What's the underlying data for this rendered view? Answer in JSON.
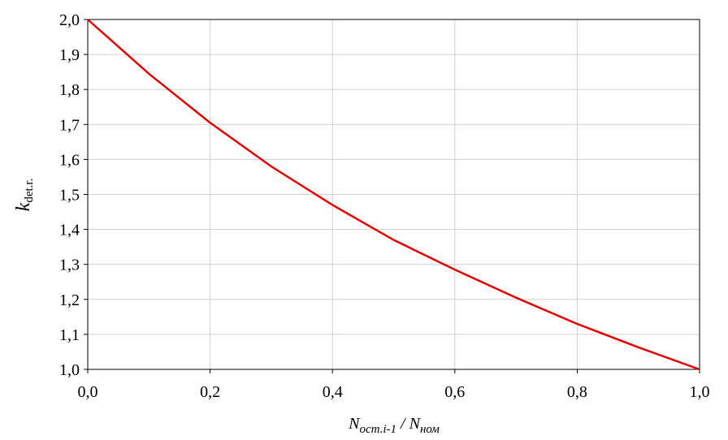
{
  "chart_data": {
    "type": "line",
    "xlabel": {
      "main1": "N",
      "sub1": "ост.i-1",
      "sep": " / ",
      "main2": "N",
      "sub2": "ном"
    },
    "ylabel": {
      "main": "k",
      "sub": "det.r."
    },
    "x": [
      0,
      0.1,
      0.2,
      0.3,
      0.4,
      0.5,
      0.6,
      0.7,
      0.8,
      0.9,
      1.0
    ],
    "series": [
      {
        "color": "#e00000",
        "values": [
          2.0,
          1.845,
          1.705,
          1.58,
          1.47,
          1.37,
          1.285,
          1.205,
          1.13,
          1.063,
          1.0
        ]
      }
    ],
    "xlim": [
      0,
      1
    ],
    "ylim": [
      1,
      2
    ],
    "xticks": [
      {
        "value": 0,
        "label": "0,0"
      },
      {
        "value": 0.2,
        "label": "0,2"
      },
      {
        "value": 0.4,
        "label": "0,4"
      },
      {
        "value": 0.6,
        "label": "0,6"
      },
      {
        "value": 0.8,
        "label": "0,8"
      },
      {
        "value": 1,
        "label": "1,0"
      }
    ],
    "yticks": [
      {
        "value": 1,
        "label": "1,0"
      },
      {
        "value": 1.1,
        "label": "1,1"
      },
      {
        "value": 1.2,
        "label": "1,2"
      },
      {
        "value": 1.3,
        "label": "1,3"
      },
      {
        "value": 1.4,
        "label": "1,4"
      },
      {
        "value": 1.5,
        "label": "1,5"
      },
      {
        "value": 1.6,
        "label": "1,6"
      },
      {
        "value": 1.7,
        "label": "1,7"
      },
      {
        "value": 1.8,
        "label": "1,8"
      },
      {
        "value": 1.9,
        "label": "1,9"
      },
      {
        "value": 2,
        "label": "2,0"
      }
    ],
    "grid": true
  }
}
